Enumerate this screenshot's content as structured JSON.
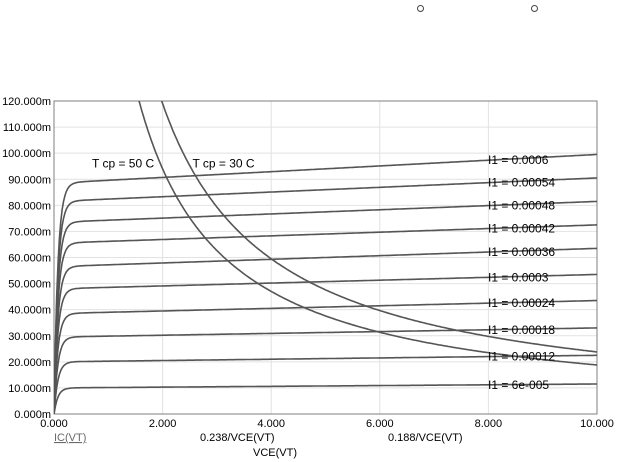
{
  "markers": [
    "circle-marker",
    "circle-marker"
  ],
  "chart_data": {
    "type": "line",
    "xlim": [
      0,
      10
    ],
    "ylim": [
      0,
      0.12
    ],
    "x_ticks": [
      {
        "value": 0,
        "label": "0.000"
      },
      {
        "value": 2,
        "label": "2.000"
      },
      {
        "value": 4,
        "label": "4.000"
      },
      {
        "value": 6,
        "label": "6.000"
      },
      {
        "value": 8,
        "label": "8.000"
      },
      {
        "value": 10,
        "label": "10.000"
      }
    ],
    "y_ticks": [
      {
        "value": 0,
        "label": "0.000m"
      },
      {
        "value": 0.01,
        "label": "10.000m"
      },
      {
        "value": 0.02,
        "label": "20.000m"
      },
      {
        "value": 0.03,
        "label": "30.000m"
      },
      {
        "value": 0.04,
        "label": "40.000m"
      },
      {
        "value": 0.05,
        "label": "50.000m"
      },
      {
        "value": 0.06,
        "label": "60.000m"
      },
      {
        "value": 0.07,
        "label": "70.000m"
      },
      {
        "value": 0.08,
        "label": "80.000m"
      },
      {
        "value": 0.09,
        "label": "90.000m"
      },
      {
        "value": 0.1,
        "label": "100.000m"
      },
      {
        "value": 0.11,
        "label": "110.000m"
      },
      {
        "value": 0.12,
        "label": "120.000m"
      }
    ],
    "xlabel": "VCE(VT)",
    "legend": [
      "IC(VT)",
      "0.238/VCE(VT)",
      "0.188/VCE(VT)"
    ],
    "grid": true,
    "output_curves": [
      {
        "label": "I1 = 0.0006",
        "sat": 0.0885,
        "end": 0.0995
      },
      {
        "label": "I1 = 0.00054",
        "sat": 0.0815,
        "end": 0.0905
      },
      {
        "label": "I1 = 0.00048",
        "sat": 0.0735,
        "end": 0.0815
      },
      {
        "label": "I1 = 0.00042",
        "sat": 0.0655,
        "end": 0.0725
      },
      {
        "label": "I1 = 0.00036",
        "sat": 0.0565,
        "end": 0.0635
      },
      {
        "label": "I1 = 0.0003",
        "sat": 0.048,
        "end": 0.0535
      },
      {
        "label": "I1 = 0.00024",
        "sat": 0.0385,
        "end": 0.0435
      },
      {
        "label": "I1 = 0.00018",
        "sat": 0.0295,
        "end": 0.033
      },
      {
        "label": "I1 = 0.00012",
        "sat": 0.02,
        "end": 0.0225
      },
      {
        "label": "I1 = 6e-005",
        "sat": 0.01,
        "end": 0.0115
      }
    ],
    "hyperbolas": [
      {
        "label": "T cp = 50 C",
        "k": 0.188,
        "label_x": 0.7,
        "label_y": 0.0945
      },
      {
        "label": "T cp = 30 C",
        "k": 0.238,
        "label_x": 2.55,
        "label_y": 0.0945
      }
    ]
  }
}
